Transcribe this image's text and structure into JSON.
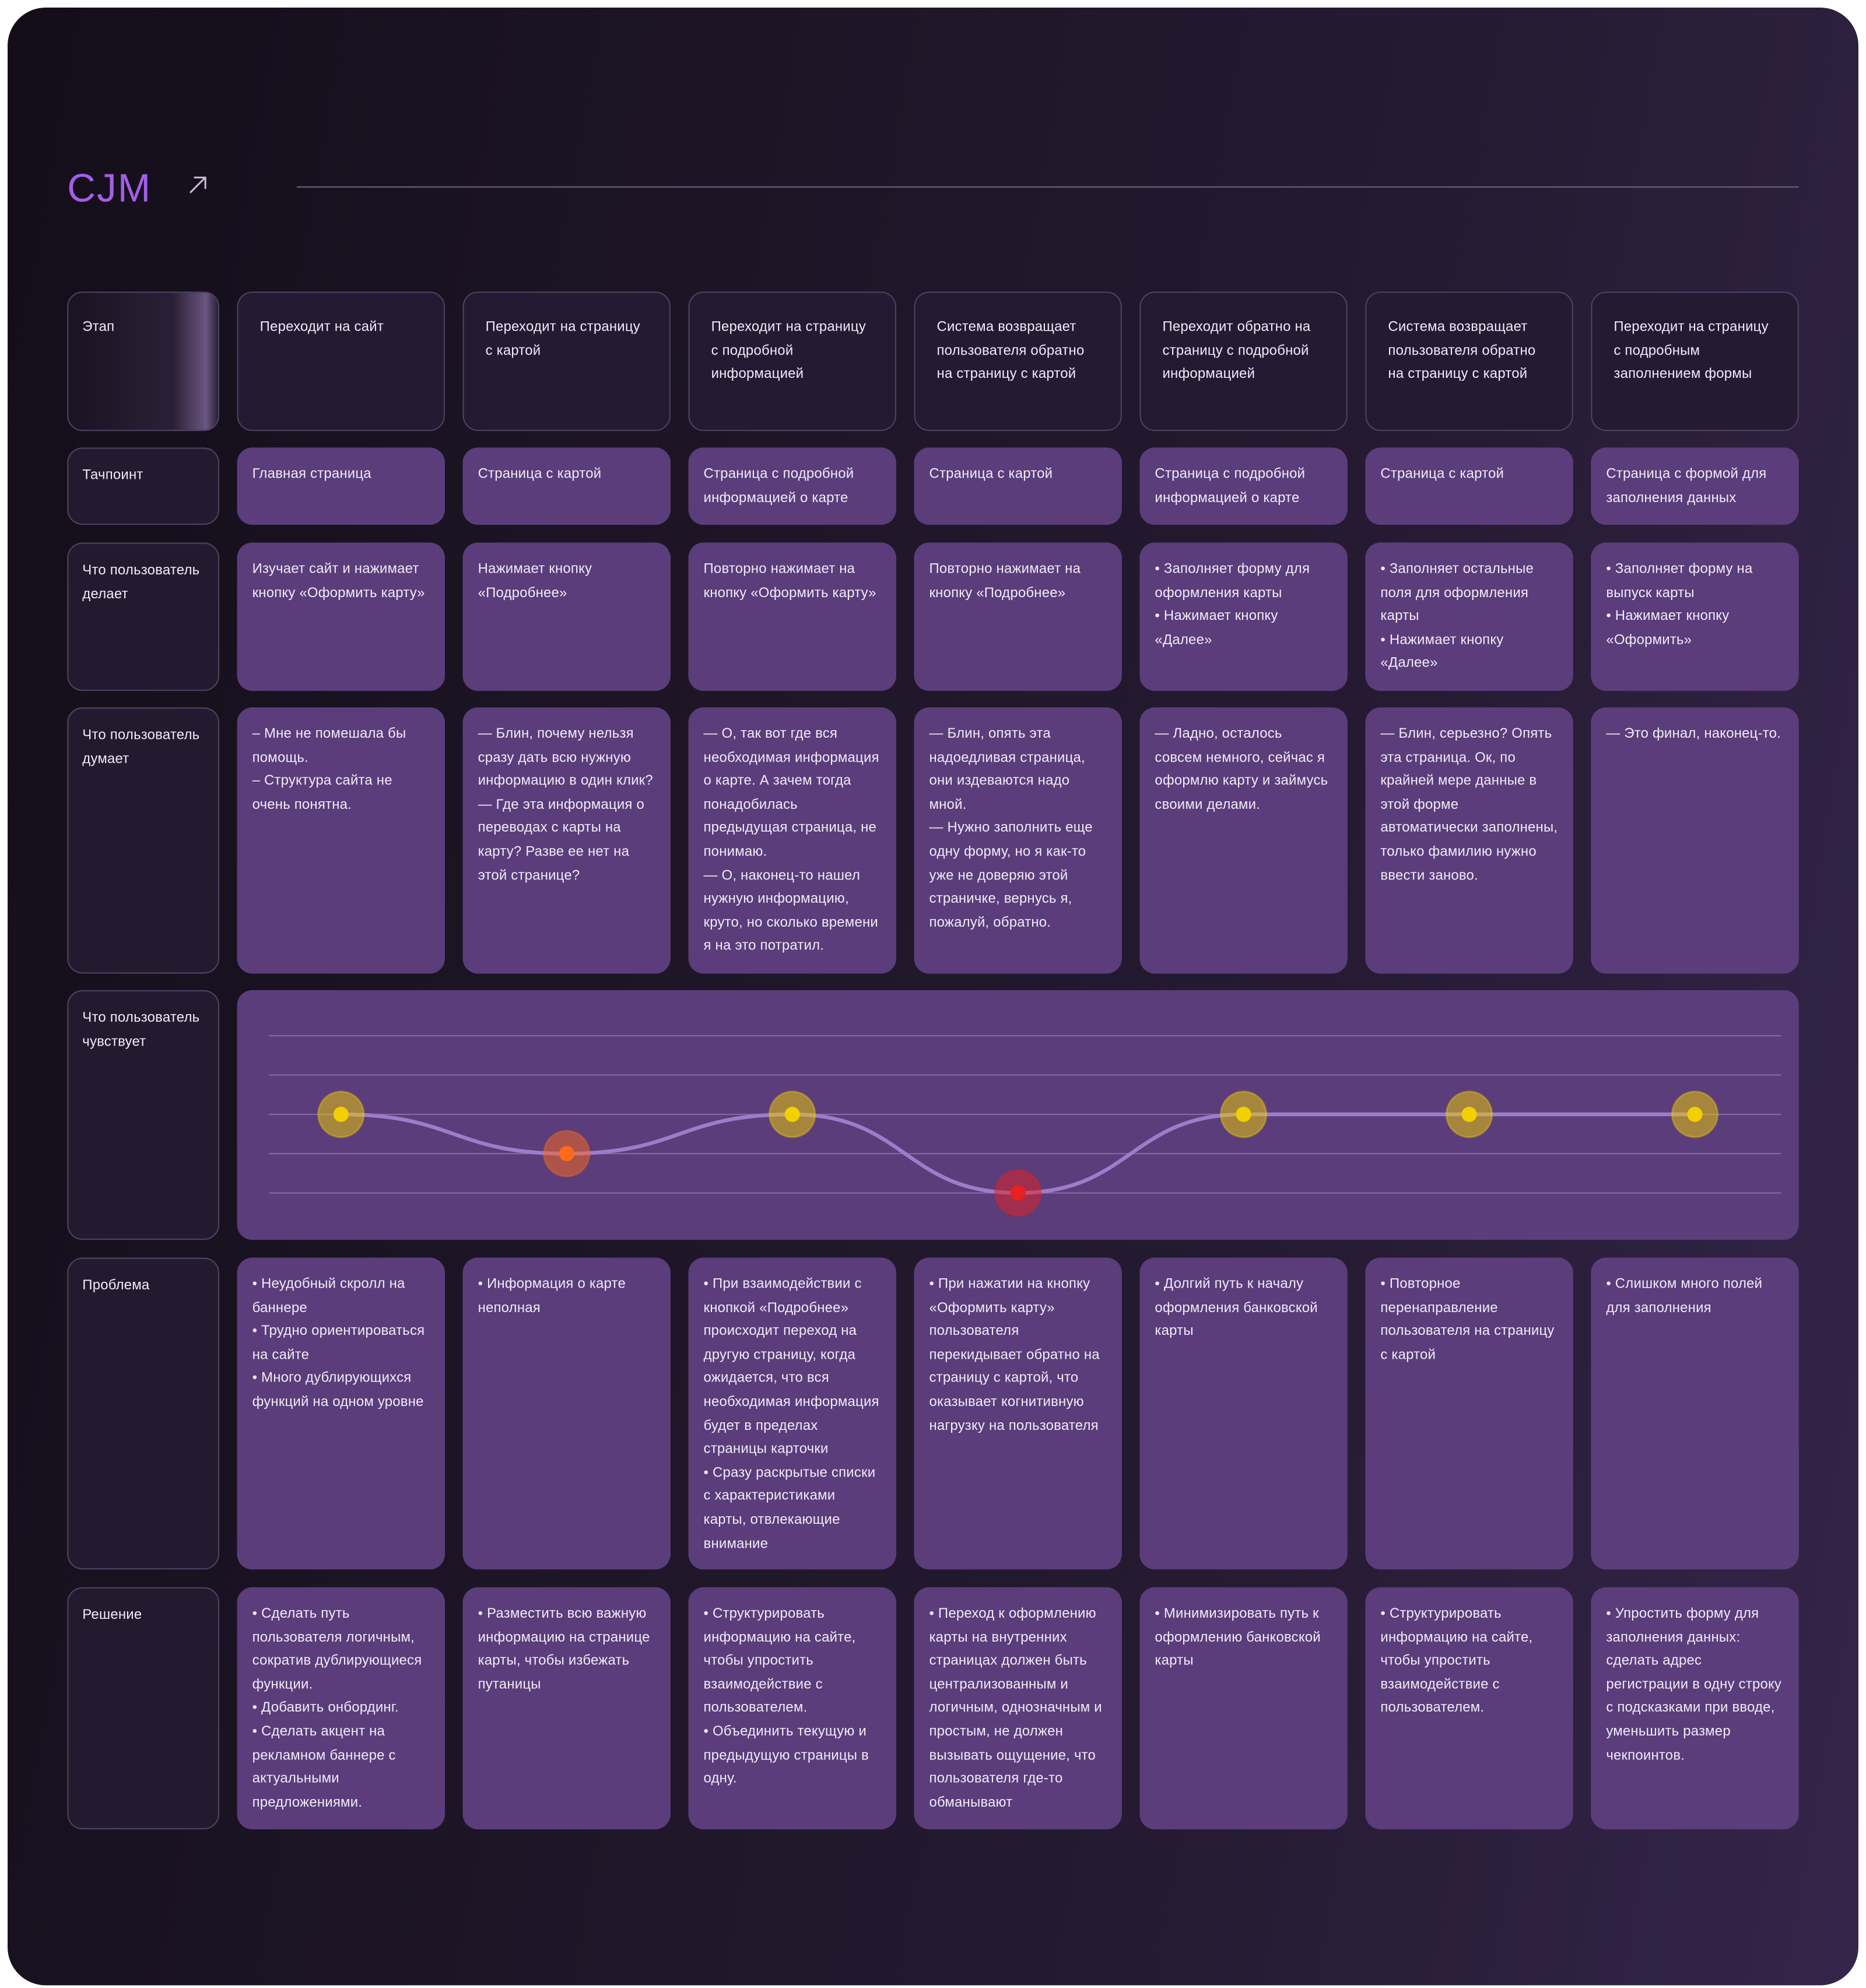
{
  "title": "CJM",
  "rows": [
    {
      "label": "Этап",
      "cells": [
        [
          "Переходит на сайт"
        ],
        [
          "Переходит на страницу с картой"
        ],
        [
          "Переходит на страницу с подробной информацией"
        ],
        [
          "Система возвращает пользователя обратно на страницу с картой"
        ],
        [
          "Переходит обратно на страницу с подробной информацией"
        ],
        [
          "Система возвращает пользователя обратно на страницу с картой"
        ],
        [
          "Переходит на страницу с подробным заполнением формы"
        ]
      ]
    },
    {
      "label": "Тачпоинт",
      "cells": [
        [
          "Главная страница"
        ],
        [
          "Страница с картой"
        ],
        [
          "Страница с подробной информацией о карте"
        ],
        [
          "Страница с картой"
        ],
        [
          "Страница с подробной информацией о карте"
        ],
        [
          "Страница с картой"
        ],
        [
          "Страница с формой для заполнения данных"
        ]
      ]
    },
    {
      "label": "Что пользователь делает",
      "cells": [
        [
          "Изучает сайт и нажимает кнопку «Оформить карту»"
        ],
        [
          "Нажимает кнопку «Подробнее»"
        ],
        [
          "Повторно нажимает на кнопку «Оформить карту»"
        ],
        [
          "Повторно нажимает на кнопку «Подробнее»"
        ],
        [
          "• Заполняет форму для оформления карты",
          "• Нажимает кнопку «Далее»"
        ],
        [
          "• Заполняет остальные поля для оформления карты",
          "• Нажимает кнопку «Далее»"
        ],
        [
          "• Заполняет форму на выпуск карты",
          "• Нажимает кнопку «Оформить»"
        ]
      ]
    },
    {
      "label": "Что пользователь думает",
      "cells": [
        [
          "– Мне не помешала бы помощь.",
          "– Структура сайта не очень понятна."
        ],
        [
          "— Блин, почему нельзя сразу дать всю нужную информацию в один клик?",
          "— Где эта информация о переводах с карты на карту? Разве ее нет на этой странице?"
        ],
        [
          "— О, так вот где вся необходимая информация о карте. А зачем тогда понадобилась предыдущая страница, не понимаю.",
          "— О, наконец-то нашел нужную информацию, круто, но сколько времени я на это потратил."
        ],
        [
          "— Блин, опять эта надоедливая страница, они издеваются надо мной.",
          "— Нужно заполнить еще одну форму, но я как-то уже не доверяю этой страничке, вернусь я, пожалуй, обратно."
        ],
        [
          "— Ладно, осталось совсем немного, сейчас я оформлю карту и займусь своими делами."
        ],
        [
          "— Блин, серьезно? Опять эта страница. Ок, по крайней мере данные в этой форме автоматически заполнены, только фамилию нужно ввести заново."
        ],
        [
          "— Это финал, наконец-то."
        ]
      ]
    },
    {
      "label": "Что пользователь чувствует",
      "levels": [
        3,
        2,
        3,
        1,
        3,
        3,
        3
      ],
      "scale": [
        1,
        5
      ],
      "colors": [
        "#f2d000",
        "#ff6a1a",
        "#f2d000",
        "#e8201e",
        "#f2d000",
        "#f2d000",
        "#f2d000"
      ]
    },
    {
      "label": "Проблема",
      "cells": [
        [
          "• Неудобный скролл на баннере",
          "• Трудно ориентироваться на сайте",
          "• Много дублирующихся функций на одном уровне"
        ],
        [
          "• Информация о карте неполная"
        ],
        [
          "• При взаимодействии с кнопкой «Подробнее» происходит переход на другую страницу, когда ожидается, что вся необходимая информация будет в пределах страницы карточки",
          "• Сразу раскрытые списки с характеристиками карты, отвлекающие внимание"
        ],
        [
          "• При нажатии на кнопку «Оформить карту» пользователя перекидывает обратно на страницу с картой, что оказывает когнитивную нагрузку на пользователя"
        ],
        [
          "• Долгий путь к началу оформления банковской карты"
        ],
        [
          "• Повторное перенаправление пользователя на страницу с картой"
        ],
        [
          "• Слишком много полей для заполнения"
        ]
      ]
    },
    {
      "label": "Решение",
      "cells": [
        [
          "• Сделать путь пользователя логичным, сократив дублирующиеся функции.",
          "• Добавить онбординг.",
          "• Сделать акцент на рекламном баннере с актуальными предложениями."
        ],
        [
          "• Разместить всю важную информацию на странице карты, чтобы избежать путаницы"
        ],
        [
          "• Структурировать информацию на сайте, чтобы упростить взаимодействие с пользователем.",
          "• Объединить текущую и предыдущую страницы в одну."
        ],
        [
          "• Переход к оформлению карты на внутренних страницах должен быть централизованным и логичным, однозначным и простым, не должен вызывать ощущение, что пользователя где-то обманывают"
        ],
        [
          "• Минимизировать путь к оформлению банковской карты"
        ],
        [
          "• Структурировать информацию на сайте, чтобы упростить взаимодействие с пользователем."
        ],
        [
          "• Упростить форму для заполнения данных: сделать адрес регистрации в одну строку с подсказками при вводе, уменьшить размер чекпоинтов."
        ]
      ]
    }
  ]
}
